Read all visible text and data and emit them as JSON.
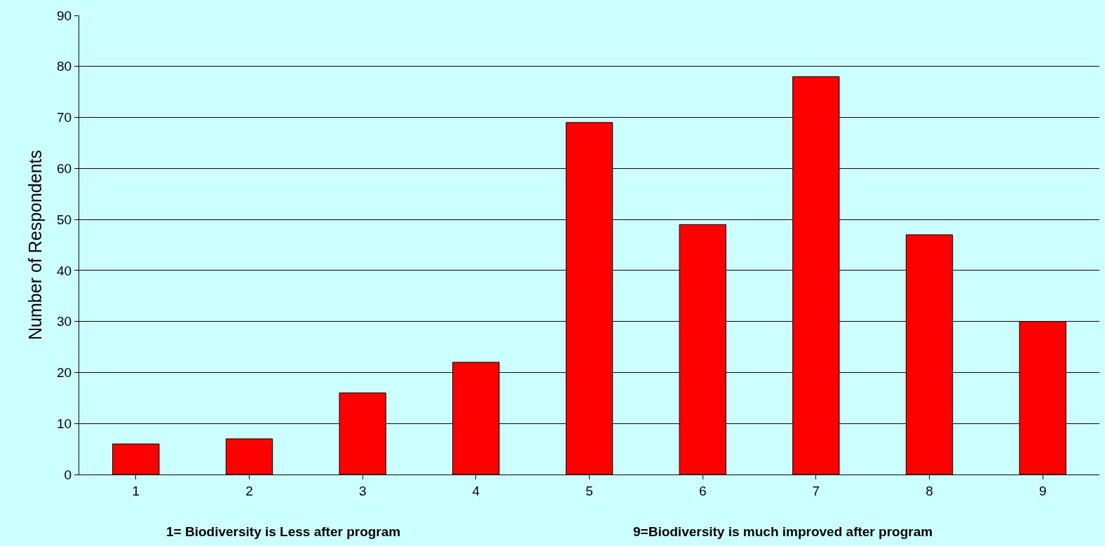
{
  "chart_data": {
    "type": "bar",
    "ylabel": "Number of Respondents",
    "categories": [
      "1",
      "2",
      "3",
      "4",
      "5",
      "6",
      "7",
      "8",
      "9"
    ],
    "values": [
      6,
      7,
      16,
      22,
      69,
      49,
      78,
      47,
      30
    ],
    "color": "#ff0000",
    "ylim": [
      0,
      90
    ],
    "yticks": [
      0,
      10,
      20,
      30,
      40,
      50,
      60,
      70,
      80,
      90
    ],
    "grid": "y",
    "legend": false,
    "annotations": [
      "1= Biodiversity is Less after program",
      "9=Biodiversity is much improved after program"
    ]
  }
}
